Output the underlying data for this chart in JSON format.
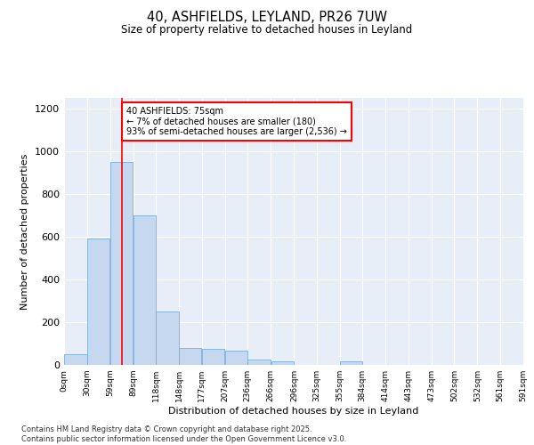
{
  "title1": "40, ASHFIELDS, LEYLAND, PR26 7UW",
  "title2": "Size of property relative to detached houses in Leyland",
  "xlabel": "Distribution of detached houses by size in Leyland",
  "ylabel": "Number of detached properties",
  "annotation_title": "40 ASHFIELDS: 75sqm",
  "annotation_line1": "← 7% of detached houses are smaller (180)",
  "annotation_line2": "93% of semi-detached houses are larger (2,536) →",
  "footer1": "Contains HM Land Registry data © Crown copyright and database right 2025.",
  "footer2": "Contains public sector information licensed under the Open Government Licence v3.0.",
  "property_size": 75,
  "bin_edges": [
    0,
    30,
    59,
    89,
    118,
    148,
    177,
    207,
    236,
    266,
    296,
    325,
    355,
    384,
    414,
    443,
    473,
    502,
    532,
    561,
    591
  ],
  "bar_heights": [
    50,
    590,
    950,
    700,
    250,
    80,
    75,
    65,
    25,
    18,
    0,
    0,
    15,
    0,
    0,
    0,
    0,
    0,
    0,
    0
  ],
  "bar_color": "#c5d8f0",
  "bar_edge_color": "#7aaed6",
  "vline_color": "red",
  "vline_x": 75,
  "annotation_box_color": "red",
  "background_color": "#e8eef8",
  "ylim": [
    0,
    1250
  ],
  "yticks": [
    0,
    200,
    400,
    600,
    800,
    1000,
    1200
  ],
  "tick_labels": [
    "0sqm",
    "30sqm",
    "59sqm",
    "89sqm",
    "118sqm",
    "148sqm",
    "177sqm",
    "207sqm",
    "236sqm",
    "266sqm",
    "296sqm",
    "325sqm",
    "355sqm",
    "384sqm",
    "414sqm",
    "443sqm",
    "473sqm",
    "502sqm",
    "532sqm",
    "561sqm",
    "591sqm"
  ]
}
